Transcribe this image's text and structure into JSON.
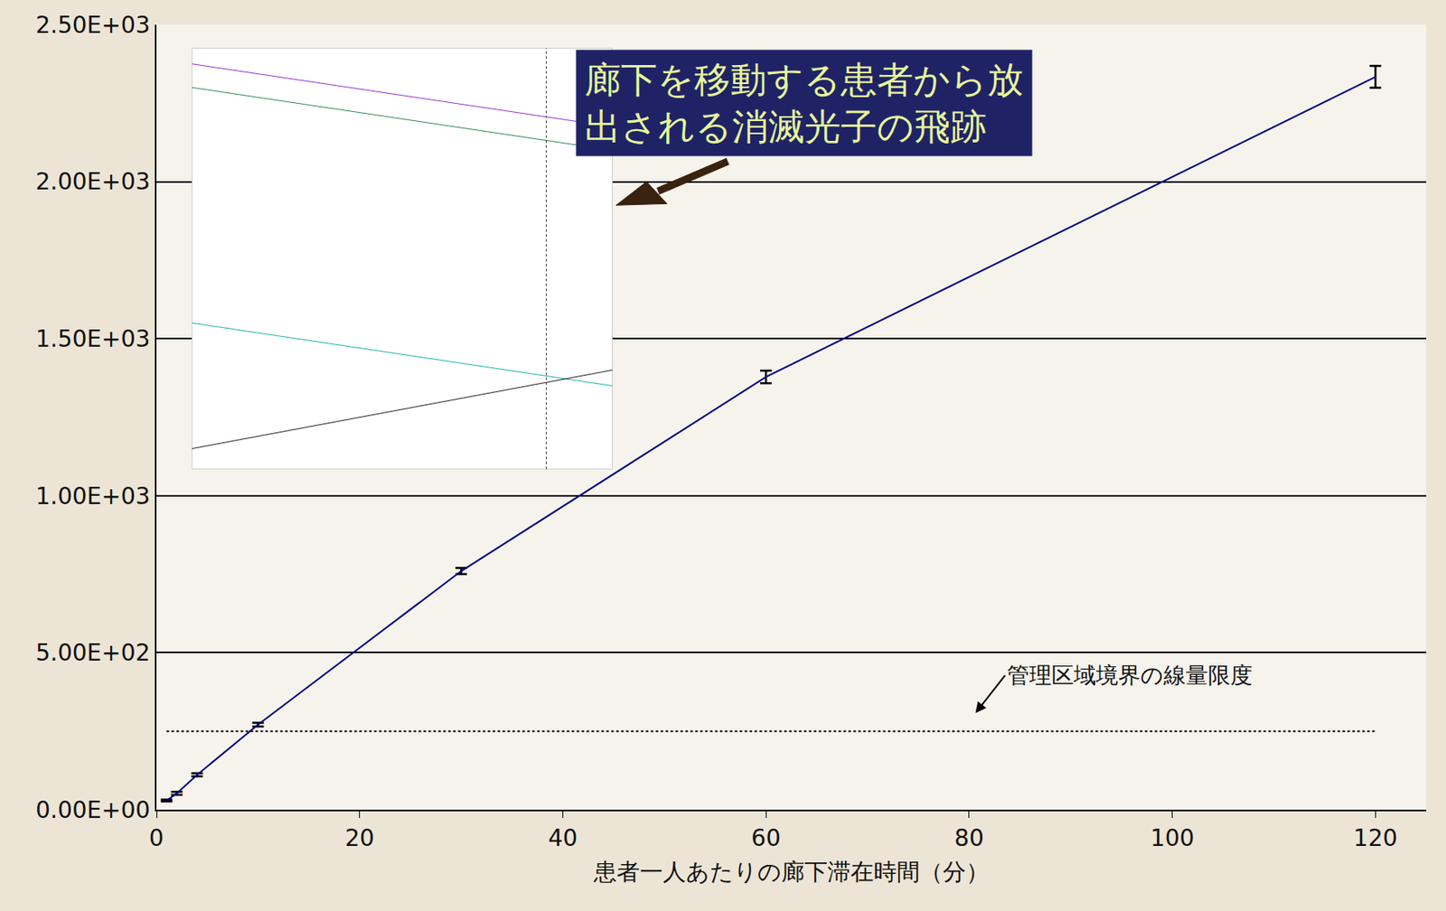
{
  "chart_data": {
    "type": "line",
    "x_label": "患者一人あたりの廊下滞在時間（分）",
    "x": [
      1,
      2,
      4,
      10,
      30,
      60,
      120
    ],
    "values": [
      29,
      52,
      111,
      271,
      760,
      1378,
      2334
    ],
    "error": [
      3,
      5,
      5,
      6,
      10,
      20,
      35
    ],
    "color": "#000080",
    "xlim": [
      0,
      125
    ],
    "xticks": [
      0,
      20,
      40,
      60,
      80,
      100,
      120
    ],
    "ylim": [
      0,
      2500
    ],
    "yticks": [
      {
        "value": 0,
        "label": "0.00E+00"
      },
      {
        "value": 500,
        "label": "5.00E+02"
      },
      {
        "value": 1000,
        "label": "1.00E+03"
      },
      {
        "value": 1500,
        "label": "1.50E+03"
      },
      {
        "value": 2000,
        "label": "2.00E+03"
      },
      {
        "value": 2500,
        "label": "2.50E+03"
      }
    ],
    "grid": "y",
    "reference_line": {
      "y": 250,
      "label": "管理区域境界の線量限度",
      "line_style": "dotted"
    },
    "callout": {
      "lines": [
        "廊下を移動する患者から放",
        "出される消滅光子の飛跡"
      ]
    }
  }
}
